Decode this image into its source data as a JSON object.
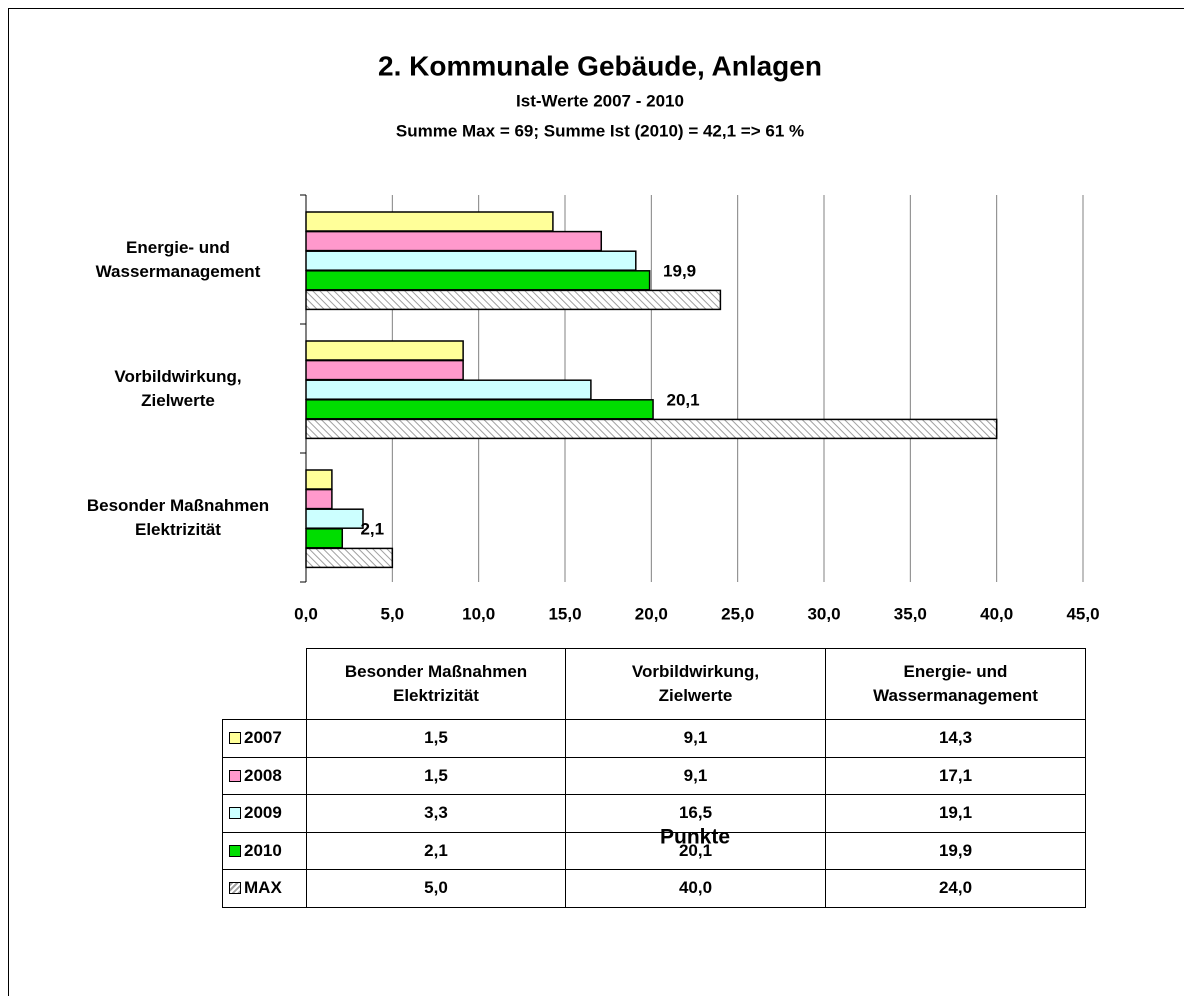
{
  "chart_data": {
    "type": "bar",
    "orientation": "horizontal",
    "title": "2. Kommunale Gebäude, Anlagen",
    "subtitle": [
      "Ist-Werte 2007 - 2010",
      "Summe Max = 69; Summe Ist (2010) = 42,1  => 61 %"
    ],
    "x_label": "Punkte",
    "categories": [
      "Besonder Maßnahmen\nElektrizität",
      "Vorbildwirkung,\nZielwerte",
      "Energie- und\nWassermanagement"
    ],
    "series": [
      {
        "name": "2007",
        "color": "#ffff99",
        "values": [
          1.5,
          9.1,
          14.3
        ],
        "value_labels": [
          "1,5",
          "9,1",
          "14,3"
        ]
      },
      {
        "name": "2008",
        "color": "#ff99cc",
        "values": [
          1.5,
          9.1,
          17.1
        ],
        "value_labels": [
          "1,5",
          "9,1",
          "17,1"
        ]
      },
      {
        "name": "2009",
        "color": "#ccffff",
        "values": [
          3.3,
          16.5,
          19.1
        ],
        "value_labels": [
          "3,3",
          "16,5",
          "19,1"
        ]
      },
      {
        "name": "2010",
        "color": "#00dd00",
        "values": [
          2.1,
          20.1,
          19.9
        ],
        "value_labels": [
          "2,1",
          "20,1",
          "19,9"
        ],
        "show_labels": true
      },
      {
        "name": "MAX",
        "color": "#c0c0c0",
        "pattern": "hatch",
        "values": [
          5.0,
          40.0,
          24.0
        ],
        "value_labels": [
          "5,0",
          "40,0",
          "24,0"
        ]
      }
    ],
    "xlim": [
      0,
      45
    ],
    "xticks": [
      {
        "value": 0,
        "label": "0,0"
      },
      {
        "value": 5,
        "label": "5,0"
      },
      {
        "value": 10,
        "label": "10,0"
      },
      {
        "value": 15,
        "label": "15,0"
      },
      {
        "value": 20,
        "label": "20,0"
      },
      {
        "value": 25,
        "label": "25,0"
      },
      {
        "value": 30,
        "label": "30,0"
      },
      {
        "value": 35,
        "label": "35,0"
      },
      {
        "value": 40,
        "label": "40,0"
      },
      {
        "value": 45,
        "label": "45,0"
      }
    ],
    "grid": true,
    "data_table": true
  }
}
